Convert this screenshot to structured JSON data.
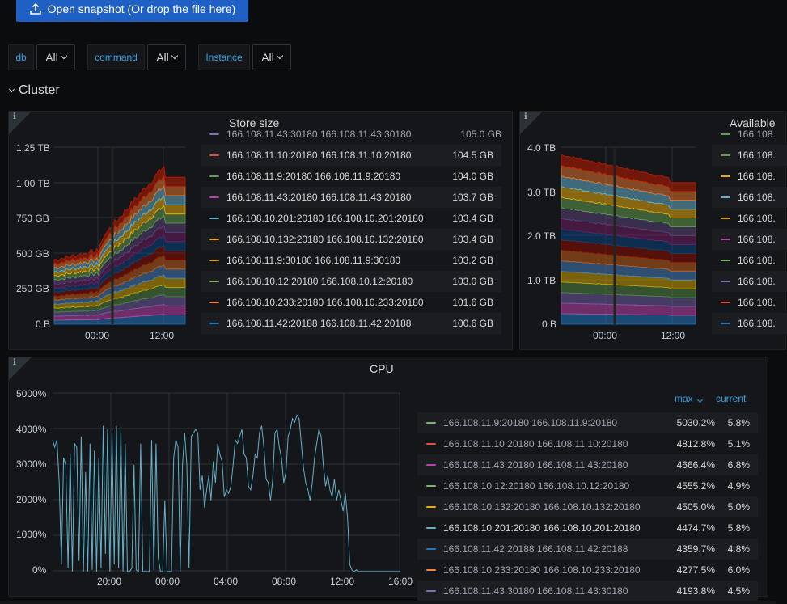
{
  "snapshot_button": {
    "label": "Open snapshot (Or drop the file here)",
    "icon": "upload-icon"
  },
  "variables": [
    {
      "label": "db",
      "value": "All"
    },
    {
      "label": "command",
      "value": "All"
    },
    {
      "label": "Instance",
      "value": "All"
    }
  ],
  "row": {
    "title": "Cluster"
  },
  "colors": {
    "accent": "#33a2e5",
    "button": "#1f60c4",
    "panel_bg": "#141619",
    "series": [
      "#1f78c1",
      "#ba43a9",
      "#705da0",
      "#508642",
      "#cca300",
      "#447ebc",
      "#c15c17",
      "#890f02",
      "#0a437c",
      "#6d1f62",
      "#584477",
      "#629e51",
      "#e5ac0e",
      "#64b0c8",
      "#e0752d",
      "#bf1b00"
    ]
  },
  "store_size": {
    "title": "Store size",
    "chart_data": {
      "type": "area",
      "stacked": true,
      "y_ticks": [
        "0 B",
        "250 GB",
        "500 GB",
        "750 GB",
        "1.00 TB",
        "1.25 TB"
      ],
      "ylim": [
        0,
        1.25
      ],
      "x_ticks": [
        "00:00",
        "12:00"
      ],
      "grid": true
    },
    "legend": [
      {
        "name": "166.108.11.10:20180 166.108.11.10:20180",
        "value": "104.5 GB",
        "color": "#e24d42"
      },
      {
        "name": "166.108.11.9:20180 166.108.11.9:20180",
        "value": "104.0 GB",
        "color": "#629e51"
      },
      {
        "name": "166.108.11.43:20180 166.108.11.43:20180",
        "value": "103.7 GB",
        "color": "#ba43a9"
      },
      {
        "name": "166.108.10.201:20180 166.108.10.201:20180",
        "value": "103.4 GB",
        "color": "#64b0c8"
      },
      {
        "name": "166.108.10.132:20180 166.108.10.132:20180",
        "value": "103.4 GB",
        "color": "#e5ac0e"
      },
      {
        "name": "166.108.11.9:30180 166.108.11.9:30180",
        "value": "103.2 GB",
        "color": "#cca300"
      },
      {
        "name": "166.108.10.12:20180 166.108.10.12:20180",
        "value": "103.0 GB",
        "color": "#7eb26d"
      },
      {
        "name": "166.108.10.233:20180 166.108.10.233:20180",
        "value": "101.6 GB",
        "color": "#ef843c"
      },
      {
        "name": "166.108.11.42:20188 166.108.11.42:20188",
        "value": "100.6 GB",
        "color": "#1f78c1"
      }
    ]
  },
  "available": {
    "title": "Available",
    "chart_data": {
      "type": "area",
      "stacked": true,
      "y_ticks": [
        "0 B",
        "1.0 TB",
        "2.0 TB",
        "3.0 TB",
        "4.0 TB"
      ],
      "ylim": [
        0,
        4.0
      ],
      "x_ticks": [
        "00:00",
        "12:00"
      ],
      "grid": true
    },
    "legend": [
      {
        "name": "166.108.",
        "color": "#629e51"
      },
      {
        "name": "166.108.",
        "color": "#e5ac0e"
      },
      {
        "name": "166.108.",
        "color": "#64b0c8"
      },
      {
        "name": "166.108.",
        "color": "#cca300"
      },
      {
        "name": "166.108.",
        "color": "#ba43a9"
      },
      {
        "name": "166.108.",
        "color": "#7eb26d"
      },
      {
        "name": "166.108.",
        "color": "#806eb7"
      },
      {
        "name": "166.108.",
        "color": "#e24d42"
      },
      {
        "name": "166.108.",
        "color": "#1f78c1"
      }
    ]
  },
  "cpu": {
    "title": "CPU",
    "chart_data": {
      "type": "line",
      "y_ticks": [
        "0%",
        "1000%",
        "2000%",
        "3000%",
        "4000%",
        "5000%"
      ],
      "ylim": [
        0,
        5000
      ],
      "x_ticks": [
        "20:00",
        "00:00",
        "04:00",
        "08:00",
        "12:00",
        "16:00"
      ],
      "grid": true,
      "series_color": "#64b0c8",
      "values": [
        3700,
        3500,
        3700,
        2500,
        200,
        3200,
        3000,
        100,
        3300,
        0,
        3600,
        3500,
        300,
        3800,
        0,
        2800,
        0,
        3600,
        50,
        3400,
        0,
        3200,
        100,
        4100,
        500,
        4000,
        0,
        3900,
        200,
        4100,
        100,
        4000,
        0,
        3600,
        0,
        0,
        100,
        3000,
        50,
        0,
        3600,
        0,
        0,
        0,
        0,
        3700,
        50,
        3600,
        400,
        0,
        0,
        2000,
        0,
        0,
        0,
        3200,
        3700,
        3500,
        0,
        3000,
        3900,
        3000,
        100,
        3800,
        3900,
        4000,
        3900,
        2300,
        2700,
        1800,
        2300,
        2700,
        2000,
        3100,
        2500,
        3600,
        3300,
        3100,
        2100,
        2300,
        2200,
        2400,
        3000,
        3700,
        3600,
        3800,
        4000,
        3300,
        3200,
        2400,
        2300,
        2700,
        3300,
        3200,
        3900,
        4100,
        3500,
        2600,
        2500,
        2000,
        2600,
        3900,
        4000,
        3500,
        3200,
        2500,
        2800,
        3800,
        4000,
        4300,
        4200,
        4400,
        4300,
        3600,
        2900,
        2500,
        2300,
        2000,
        2500,
        3200,
        3600,
        4000,
        3800,
        3000,
        2400,
        2700,
        2300,
        2100,
        2600,
        2000,
        2300,
        2000,
        1700,
        2200,
        1500,
        200,
        50,
        0,
        50,
        0,
        0,
        0,
        0,
        0,
        0,
        0,
        0,
        0,
        0,
        0,
        0,
        0,
        0,
        0,
        0,
        0,
        0,
        0,
        0
      ]
    },
    "legend_headers": {
      "max": "max",
      "current": "current"
    },
    "legend": [
      {
        "name": "166.108.11.9:20180 166.108.11.9:20180",
        "max": "5030.2%",
        "current": "5.8%",
        "color": "#7eb26d"
      },
      {
        "name": "166.108.11.10:20180 166.108.11.10:20180",
        "max": "4812.8%",
        "current": "5.1%",
        "color": "#e24d42"
      },
      {
        "name": "166.108.11.43:20180 166.108.11.43:20180",
        "max": "4666.4%",
        "current": "6.8%",
        "color": "#ba43a9"
      },
      {
        "name": "166.108.10.12:20180 166.108.10.12:20180",
        "max": "4555.2%",
        "current": "4.9%",
        "color": "#7eb26d"
      },
      {
        "name": "166.108.10.132:20180 166.108.10.132:20180",
        "max": "4505.0%",
        "current": "5.0%",
        "color": "#e5ac0e"
      },
      {
        "name": "166.108.10.201:20180 166.108.10.201:20180",
        "max": "4474.7%",
        "current": "5.8%",
        "color": "#64b0c8"
      },
      {
        "name": "166.108.11.42:20188 166.108.11.42:20188",
        "max": "4359.7%",
        "current": "4.8%",
        "color": "#1f78c1"
      },
      {
        "name": "166.108.10.233:20180 166.108.10.233:20180",
        "max": "4277.5%",
        "current": "6.0%",
        "color": "#ef843c"
      },
      {
        "name": "166.108.11.43:30180 166.108.11.43:30180",
        "max": "4193.8%",
        "current": "4.5%",
        "color": "#806eb7"
      }
    ]
  }
}
